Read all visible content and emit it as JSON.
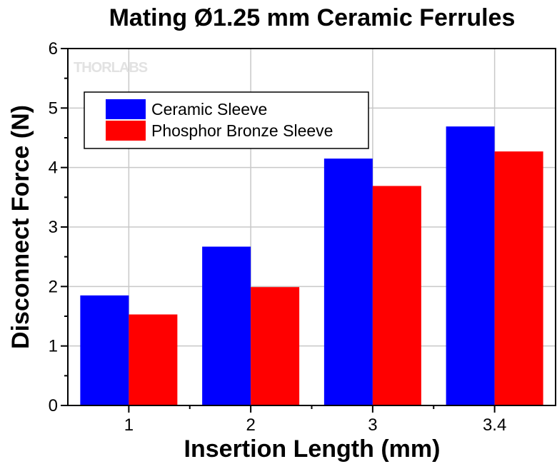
{
  "chart_data": {
    "type": "bar",
    "title": "Mating Ø1.25 mm Ceramic Ferrules",
    "xlabel": "Insertion Length (mm)",
    "ylabel": "Disconnect Force (N)",
    "categories": [
      "1",
      "2",
      "3",
      "3.4"
    ],
    "series": [
      {
        "name": "Ceramic Sleeve",
        "color": "#0000ff",
        "values": [
          1.85,
          2.67,
          4.15,
          4.69
        ]
      },
      {
        "name": "Phosphor Bronze Sleeve",
        "color": "#ff0000",
        "values": [
          1.53,
          1.99,
          3.69,
          4.27
        ]
      }
    ],
    "ylim": [
      0,
      6
    ],
    "yticks": [
      0,
      1,
      2,
      3,
      4,
      5,
      6
    ],
    "grid": true,
    "legend_position": "top-left",
    "watermark": "THORLABS"
  }
}
